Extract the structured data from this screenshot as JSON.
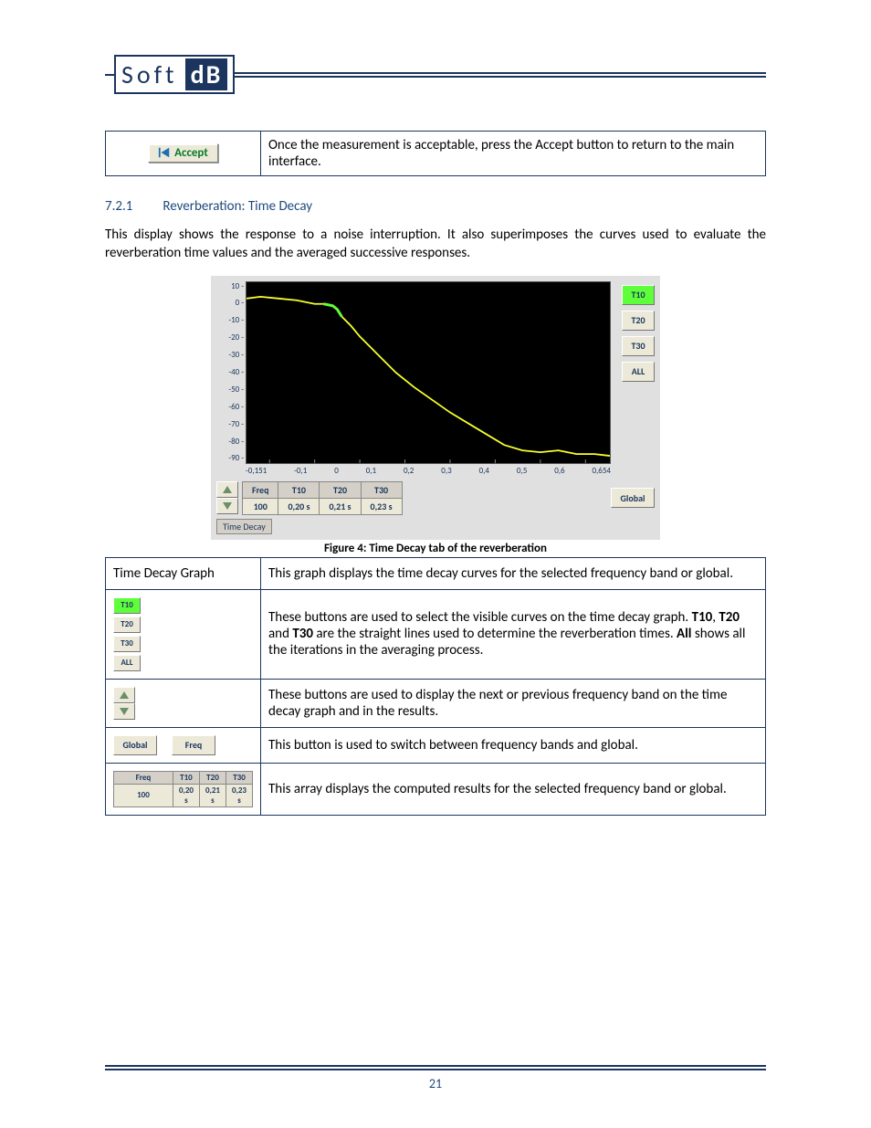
{
  "logo": {
    "soft": "Soft",
    "db": "dB"
  },
  "accept_row": {
    "button_label": "Accept",
    "description": "Once the measurement is acceptable, press the Accept button to return to the main interface."
  },
  "section": {
    "number": "7.2.1",
    "title": "Reverberation: Time Decay"
  },
  "intro_paragraph": "This display shows the response to a noise interruption. It also superimposes the curves used to evaluate the reverberation time values and the averaged successive responses.",
  "chart": {
    "type": "line",
    "background_color": "#000000",
    "line_color": "#f8ff2a",
    "highlight_color": "#5eff3a",
    "axis_color": "#1b355e",
    "grid_color": "#333333",
    "y_ticks": [
      "10",
      "0",
      "-10",
      "-20",
      "-30",
      "-40",
      "-50",
      "-60",
      "-70",
      "-80",
      "-90"
    ],
    "x_ticks": [
      "-0,151",
      "-0,1",
      "0",
      "0,1",
      "0,2",
      "0,3",
      "0,4",
      "0,5",
      "0,6",
      "0,654"
    ],
    "xlim": [
      -0.151,
      0.654
    ],
    "ylim": [
      -90,
      10
    ],
    "curve": [
      [
        -0.151,
        1
      ],
      [
        -0.12,
        2
      ],
      [
        -0.08,
        1
      ],
      [
        -0.04,
        0
      ],
      [
        0.0,
        -2
      ],
      [
        0.02,
        -2
      ],
      [
        0.04,
        -3
      ],
      [
        0.05,
        -5
      ],
      [
        0.06,
        -9
      ],
      [
        0.08,
        -14
      ],
      [
        0.1,
        -20
      ],
      [
        0.14,
        -30
      ],
      [
        0.18,
        -40
      ],
      [
        0.22,
        -48
      ],
      [
        0.26,
        -55
      ],
      [
        0.3,
        -62
      ],
      [
        0.34,
        -68
      ],
      [
        0.38,
        -74
      ],
      [
        0.42,
        -80
      ],
      [
        0.46,
        -83
      ],
      [
        0.5,
        -84
      ],
      [
        0.54,
        -83
      ],
      [
        0.58,
        -85
      ],
      [
        0.62,
        -85
      ],
      [
        0.654,
        -86
      ]
    ],
    "highlight_segment": [
      [
        0.02,
        -2
      ],
      [
        0.04,
        -3
      ],
      [
        0.05,
        -5
      ],
      [
        0.06,
        -9
      ]
    ],
    "right_buttons": [
      "T10",
      "T20",
      "T30",
      "ALL"
    ],
    "active_button": "T10",
    "global_label": "Global",
    "tab_label": "Time Decay",
    "result_table": {
      "headers": [
        "Freq",
        "T10",
        "T20",
        "T30"
      ],
      "row": [
        "100",
        "0,20 s",
        "0,21 s",
        "0,23 s"
      ]
    }
  },
  "figure_caption": "Figure 4: Time Decay tab of the reverberation",
  "desc_rows": {
    "row1": {
      "label": "Time Decay Graph",
      "text": "This graph displays the time decay curves for the selected frequency band or global."
    },
    "row2": {
      "buttons": [
        "T10",
        "T20",
        "T30",
        "ALL"
      ],
      "text_parts": {
        "a": "These buttons are used to select the visible curves on the time decay graph. ",
        "b": "T10",
        "c": ", ",
        "d": "T20",
        "e": " and ",
        "f": "T30",
        "g": " are the straight lines used to determine the reverberation times. ",
        "h": "All",
        "i": " shows all the iterations in the averaging process."
      }
    },
    "row3": {
      "text": "These buttons are used to display the next or previous frequency band on the time decay graph and in the results."
    },
    "row4": {
      "btn_global": "Global",
      "btn_freq": "Freq",
      "text": "This button is used to switch between frequency bands and global."
    },
    "row5": {
      "text": "This array displays the computed results for the selected frequency band or global."
    }
  },
  "page_number": "21",
  "colors": {
    "heading": "#1f497d",
    "rule": "#1b355e",
    "button_face": "#ece9d8",
    "button_active": "#5eff3a"
  }
}
